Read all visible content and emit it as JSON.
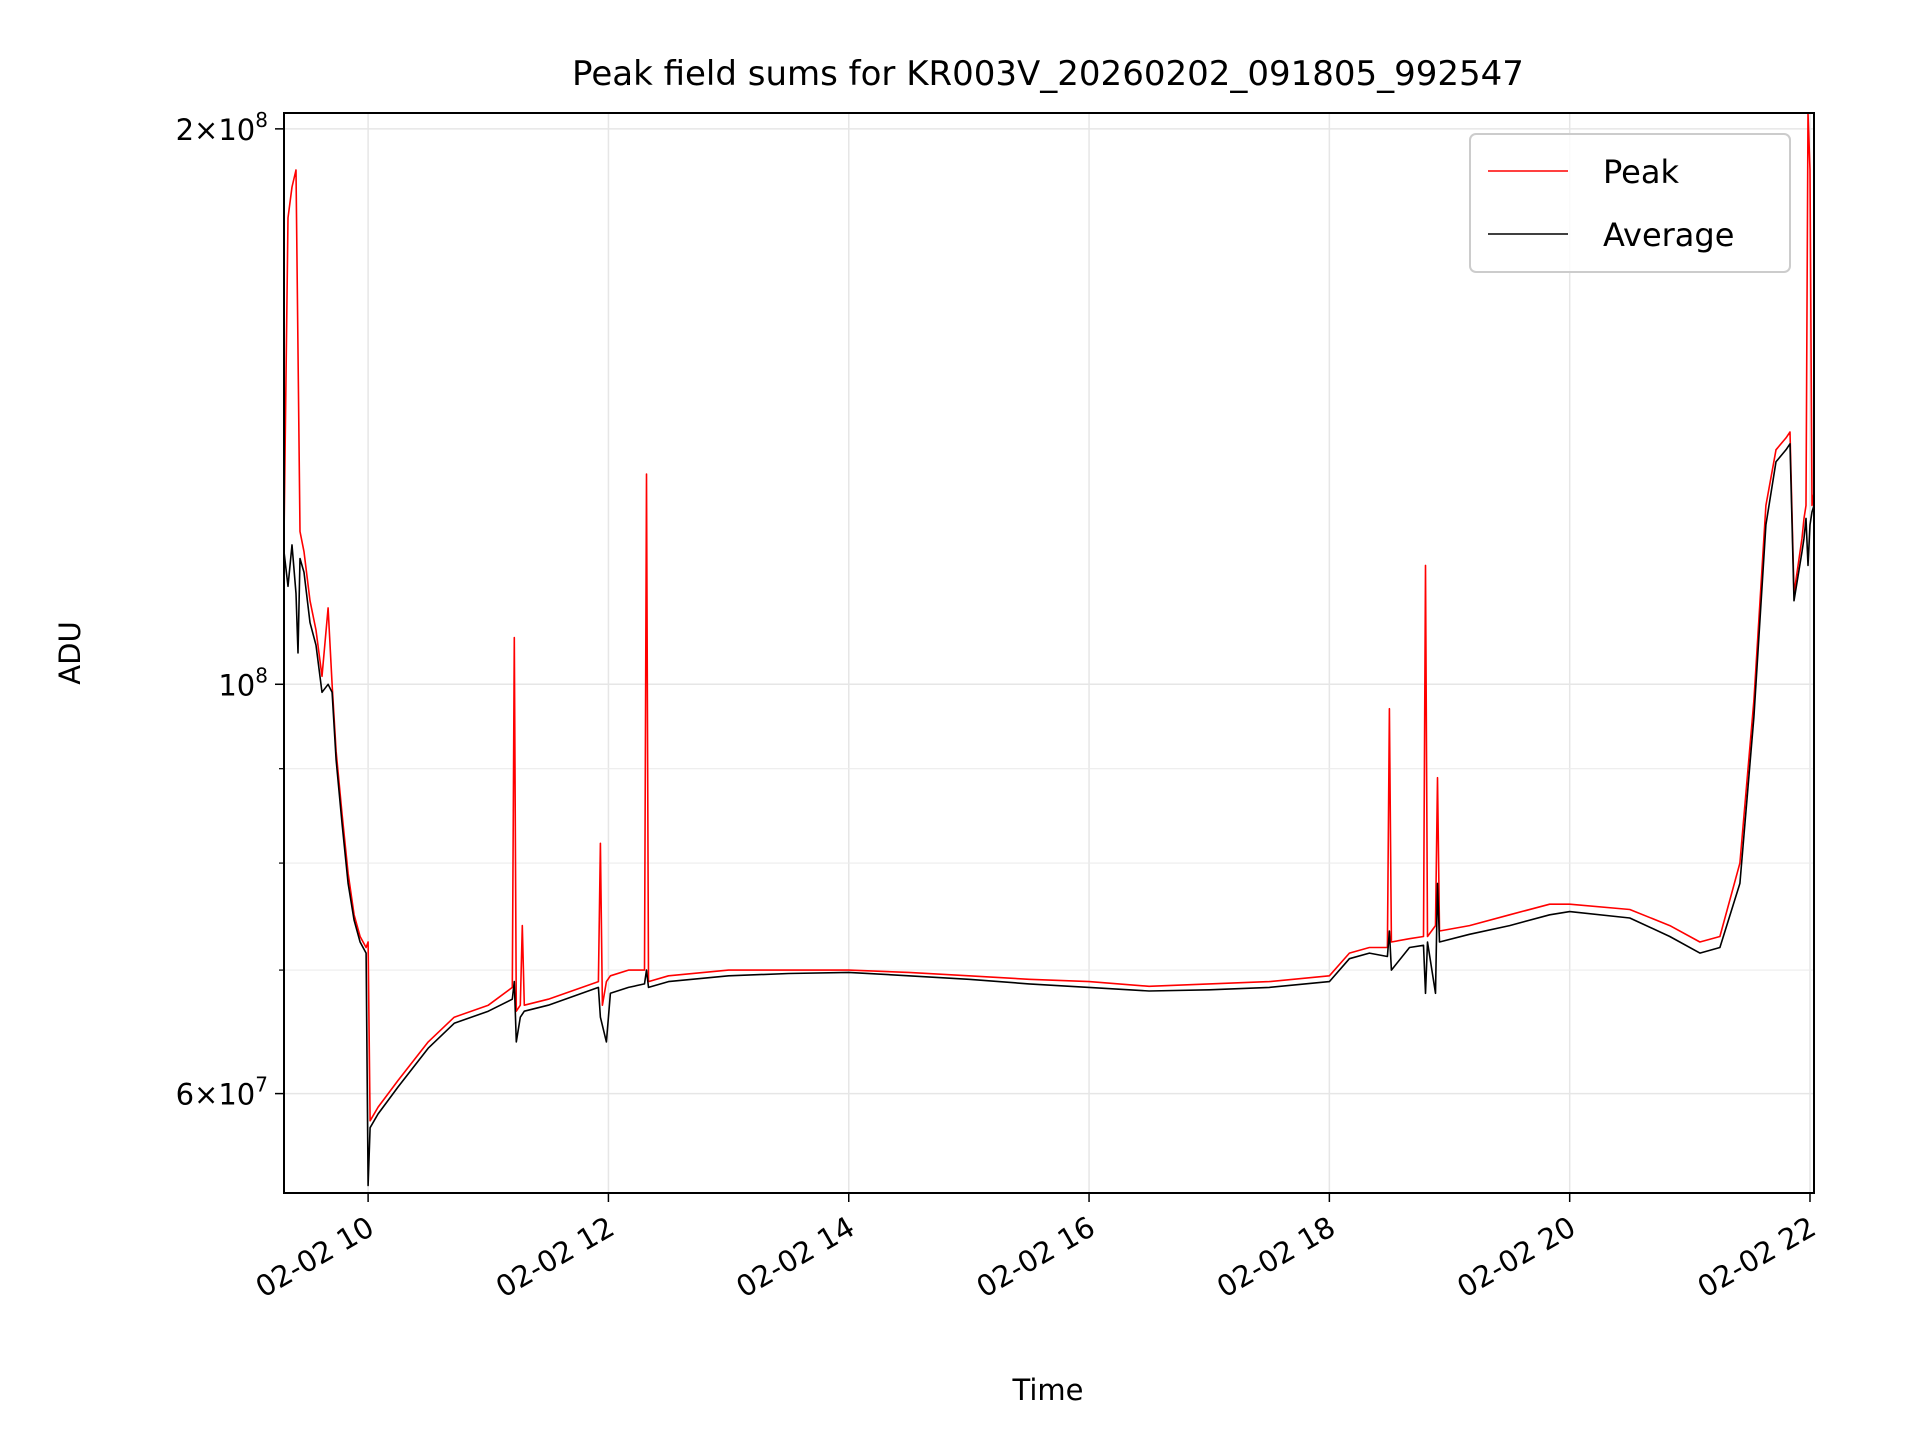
{
  "chart_data": {
    "type": "line",
    "title": "Peak field sums for KR003V_20260202_091805_992547",
    "xlabel": "Time",
    "ylabel": "ADU",
    "yscale": "log",
    "grid": true,
    "legend_placement": "top-right",
    "xlim": [
      "2026-02-02 09:18",
      "2026-02-02 22:02"
    ],
    "ylim": [
      53000000,
      204000000
    ],
    "x_ticks": [
      {
        "value": "2026-02-02 10:00",
        "label": "02-02 10"
      },
      {
        "value": "2026-02-02 12:00",
        "label": "02-02 12"
      },
      {
        "value": "2026-02-02 14:00",
        "label": "02-02 14"
      },
      {
        "value": "2026-02-02 16:00",
        "label": "02-02 16"
      },
      {
        "value": "2026-02-02 18:00",
        "label": "02-02 18"
      },
      {
        "value": "2026-02-02 20:00",
        "label": "02-02 20"
      },
      {
        "value": "2026-02-02 22:00",
        "label": "02-02 22"
      }
    ],
    "y_ticks_major": [
      {
        "value": 60000000,
        "base": "6×10",
        "exp": "7"
      },
      {
        "value": 100000000,
        "base": "10",
        "exp": "8"
      },
      {
        "value": 200000000,
        "base": "2×10",
        "exp": "8"
      }
    ],
    "y_ticks_minor": [
      70000000,
      80000000,
      90000000
    ],
    "series": [
      {
        "name": "Peak",
        "color": "#ff0000",
        "x": [
          "2026-02-02 09:18",
          "2026-02-02 09:20",
          "2026-02-02 09:22",
          "2026-02-02 09:24",
          "2026-02-02 09:26",
          "2026-02-02 09:28",
          "2026-02-02 09:31",
          "2026-02-02 09:34",
          "2026-02-02 09:37",
          "2026-02-02 09:40",
          "2026-02-02 09:42",
          "2026-02-02 09:44",
          "2026-02-02 09:47",
          "2026-02-02 09:50",
          "2026-02-02 09:53",
          "2026-02-02 09:56",
          "2026-02-02 09:59",
          "2026-02-02 10:00",
          "2026-02-02 10:01",
          "2026-02-02 10:05",
          "2026-02-02 10:15",
          "2026-02-02 10:30",
          "2026-02-02 10:43",
          "2026-02-02 11:00",
          "2026-02-02 11:12",
          "2026-02-02 11:13",
          "2026-02-02 11:14",
          "2026-02-02 11:16",
          "2026-02-02 11:17",
          "2026-02-02 11:18",
          "2026-02-02 11:30",
          "2026-02-02 11:55",
          "2026-02-02 11:56",
          "2026-02-02 11:57",
          "2026-02-02 11:59",
          "2026-02-02 12:01",
          "2026-02-02 12:10",
          "2026-02-02 12:18",
          "2026-02-02 12:19",
          "2026-02-02 12:20",
          "2026-02-02 12:30",
          "2026-02-02 13:00",
          "2026-02-02 13:30",
          "2026-02-02 14:00",
          "2026-02-02 14:30",
          "2026-02-02 15:00",
          "2026-02-02 15:30",
          "2026-02-02 16:00",
          "2026-02-02 16:30",
          "2026-02-02 17:00",
          "2026-02-02 17:30",
          "2026-02-02 18:00",
          "2026-02-02 18:10",
          "2026-02-02 18:20",
          "2026-02-02 18:29",
          "2026-02-02 18:30",
          "2026-02-02 18:31",
          "2026-02-02 18:40",
          "2026-02-02 18:47",
          "2026-02-02 18:48",
          "2026-02-02 18:49",
          "2026-02-02 18:53",
          "2026-02-02 18:54",
          "2026-02-02 18:55",
          "2026-02-02 19:10",
          "2026-02-02 19:30",
          "2026-02-02 19:50",
          "2026-02-02 20:00",
          "2026-02-02 20:30",
          "2026-02-02 20:50",
          "2026-02-02 21:05",
          "2026-02-02 21:15",
          "2026-02-02 21:25",
          "2026-02-02 21:32",
          "2026-02-02 21:38",
          "2026-02-02 21:43",
          "2026-02-02 21:48",
          "2026-02-02 21:50",
          "2026-02-02 21:52",
          "2026-02-02 21:56",
          "2026-02-02 21:57",
          "2026-02-02 21:58",
          "2026-02-02 21:59",
          "2026-02-02 22:00",
          "2026-02-02 22:01",
          "2026-02-02 22:02"
        ],
        "y": [
          120000000,
          179000000,
          186000000,
          190000000,
          121000000,
          118000000,
          111000000,
          107000000,
          101000000,
          110000000,
          100000000,
          92000000,
          85000000,
          79000000,
          75000000,
          73000000,
          72000000,
          72500000,
          58000000,
          59000000,
          61000000,
          64000000,
          66000000,
          67000000,
          68500000,
          106000000,
          66500000,
          67000000,
          74000000,
          67000000,
          67500000,
          69000000,
          82000000,
          67000000,
          69000000,
          69500000,
          70000000,
          70000000,
          130000000,
          69000000,
          69500000,
          70000000,
          70000000,
          70000000,
          69800000,
          69500000,
          69200000,
          69000000,
          68600000,
          68800000,
          69000000,
          69500000,
          71500000,
          72000000,
          72000000,
          97000000,
          72500000,
          72800000,
          73000000,
          116000000,
          73000000,
          74000000,
          89000000,
          73500000,
          74000000,
          75000000,
          76000000,
          76000000,
          75500000,
          74000000,
          72500000,
          73000000,
          80000000,
          98000000,
          125000000,
          134000000,
          136000000,
          137000000,
          112000000,
          120000000,
          123000000,
          125000000,
          204000000,
          190000000,
          125000000,
          127000000
        ]
      },
      {
        "name": "Average",
        "color": "#000000",
        "x": [
          "2026-02-02 09:18",
          "2026-02-02 09:20",
          "2026-02-02 09:22",
          "2026-02-02 09:24",
          "2026-02-02 09:25",
          "2026-02-02 09:26",
          "2026-02-02 09:28",
          "2026-02-02 09:31",
          "2026-02-02 09:34",
          "2026-02-02 09:37",
          "2026-02-02 09:40",
          "2026-02-02 09:42",
          "2026-02-02 09:44",
          "2026-02-02 09:47",
          "2026-02-02 09:50",
          "2026-02-02 09:53",
          "2026-02-02 09:56",
          "2026-02-02 09:59",
          "2026-02-02 10:00",
          "2026-02-02 10:01",
          "2026-02-02 10:05",
          "2026-02-02 10:15",
          "2026-02-02 10:30",
          "2026-02-02 10:43",
          "2026-02-02 11:00",
          "2026-02-02 11:12",
          "2026-02-02 11:13",
          "2026-02-02 11:14",
          "2026-02-02 11:16",
          "2026-02-02 11:18",
          "2026-02-02 11:30",
          "2026-02-02 11:55",
          "2026-02-02 11:56",
          "2026-02-02 11:59",
          "2026-02-02 12:01",
          "2026-02-02 12:10",
          "2026-02-02 12:18",
          "2026-02-02 12:19",
          "2026-02-02 12:20",
          "2026-02-02 12:30",
          "2026-02-02 13:00",
          "2026-02-02 13:30",
          "2026-02-02 14:00",
          "2026-02-02 14:30",
          "2026-02-02 15:00",
          "2026-02-02 15:30",
          "2026-02-02 16:00",
          "2026-02-02 16:30",
          "2026-02-02 17:00",
          "2026-02-02 17:30",
          "2026-02-02 18:00",
          "2026-02-02 18:10",
          "2026-02-02 18:20",
          "2026-02-02 18:29",
          "2026-02-02 18:30",
          "2026-02-02 18:31",
          "2026-02-02 18:40",
          "2026-02-02 18:47",
          "2026-02-02 18:48",
          "2026-02-02 18:49",
          "2026-02-02 18:53",
          "2026-02-02 18:54",
          "2026-02-02 18:55",
          "2026-02-02 19:10",
          "2026-02-02 19:30",
          "2026-02-02 19:50",
          "2026-02-02 20:00",
          "2026-02-02 20:30",
          "2026-02-02 20:50",
          "2026-02-02 21:05",
          "2026-02-02 21:15",
          "2026-02-02 21:25",
          "2026-02-02 21:32",
          "2026-02-02 21:38",
          "2026-02-02 21:43",
          "2026-02-02 21:48",
          "2026-02-02 21:50",
          "2026-02-02 21:52",
          "2026-02-02 21:56",
          "2026-02-02 21:57",
          "2026-02-02 21:58",
          "2026-02-02 21:59",
          "2026-02-02 22:00",
          "2026-02-02 22:01",
          "2026-02-02 22:02"
        ],
        "y": [
          118000000,
          113000000,
          119000000,
          112000000,
          104000000,
          117000000,
          115000000,
          108000000,
          105000000,
          99000000,
          100000000,
          99000000,
          91000000,
          84000000,
          78000000,
          74500000,
          72500000,
          71500000,
          53500000,
          57500000,
          58500000,
          60500000,
          63500000,
          65500000,
          66500000,
          67500000,
          69000000,
          64000000,
          66000000,
          66500000,
          67000000,
          68500000,
          66000000,
          64000000,
          68000000,
          68500000,
          68800000,
          70000000,
          68500000,
          69000000,
          69500000,
          69700000,
          69800000,
          69500000,
          69200000,
          68800000,
          68500000,
          68200000,
          68300000,
          68500000,
          69000000,
          71000000,
          71500000,
          71200000,
          73500000,
          70000000,
          72000000,
          72200000,
          68000000,
          72500000,
          68000000,
          78000000,
          72500000,
          73200000,
          74000000,
          75000000,
          75300000,
          74700000,
          73000000,
          71500000,
          72000000,
          78000000,
          96000000,
          122000000,
          132000000,
          134000000,
          135000000,
          111000000,
          118000000,
          120000000,
          123000000,
          116000000,
          122000000,
          124000000,
          125000000
        ]
      }
    ]
  }
}
